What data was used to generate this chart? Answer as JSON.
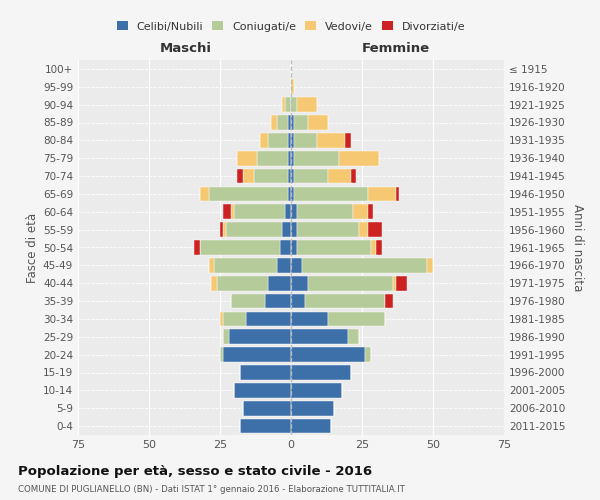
{
  "age_groups": [
    "0-4",
    "5-9",
    "10-14",
    "15-19",
    "20-24",
    "25-29",
    "30-34",
    "35-39",
    "40-44",
    "45-49",
    "50-54",
    "55-59",
    "60-64",
    "65-69",
    "70-74",
    "75-79",
    "80-84",
    "85-89",
    "90-94",
    "95-99",
    "100+"
  ],
  "birth_years": [
    "2011-2015",
    "2006-2010",
    "2001-2005",
    "1996-2000",
    "1991-1995",
    "1986-1990",
    "1981-1985",
    "1976-1980",
    "1971-1975",
    "1966-1970",
    "1961-1965",
    "1956-1960",
    "1951-1955",
    "1946-1950",
    "1941-1945",
    "1936-1940",
    "1931-1935",
    "1926-1930",
    "1921-1925",
    "1916-1920",
    "≤ 1915"
  ],
  "male": {
    "celibi": [
      18,
      17,
      20,
      18,
      24,
      22,
      16,
      9,
      8,
      5,
      4,
      3,
      2,
      1,
      1,
      1,
      1,
      1,
      0,
      0,
      0
    ],
    "coniugati": [
      0,
      0,
      0,
      0,
      1,
      2,
      8,
      12,
      18,
      22,
      28,
      20,
      18,
      28,
      12,
      11,
      7,
      4,
      2,
      0,
      0
    ],
    "vedovi": [
      0,
      0,
      0,
      0,
      0,
      0,
      1,
      0,
      2,
      2,
      0,
      1,
      1,
      3,
      4,
      7,
      3,
      2,
      1,
      0,
      0
    ],
    "divorziati": [
      0,
      0,
      0,
      0,
      0,
      0,
      0,
      0,
      0,
      0,
      2,
      1,
      3,
      0,
      2,
      0,
      0,
      0,
      0,
      0,
      0
    ]
  },
  "female": {
    "nubili": [
      14,
      15,
      18,
      21,
      26,
      20,
      13,
      5,
      6,
      4,
      2,
      2,
      2,
      1,
      1,
      1,
      1,
      1,
      0,
      0,
      0
    ],
    "coniugate": [
      0,
      0,
      0,
      0,
      2,
      4,
      20,
      28,
      30,
      44,
      26,
      22,
      20,
      26,
      12,
      16,
      8,
      5,
      2,
      0,
      0
    ],
    "vedove": [
      0,
      0,
      0,
      0,
      0,
      0,
      0,
      0,
      1,
      2,
      2,
      3,
      5,
      10,
      8,
      14,
      10,
      7,
      7,
      1,
      0
    ],
    "divorziate": [
      0,
      0,
      0,
      0,
      0,
      0,
      0,
      3,
      4,
      0,
      2,
      5,
      2,
      1,
      2,
      0,
      2,
      0,
      0,
      0,
      0
    ]
  },
  "colors": {
    "celibi": "#3d6fa8",
    "coniugati": "#b5cb9a",
    "vedovi": "#f5c871",
    "divorziati": "#cc2222"
  },
  "xlim": 75,
  "title": "Popolazione per età, sesso e stato civile - 2016",
  "subtitle": "COMUNE DI PUGLIANELLO (BN) - Dati ISTAT 1° gennaio 2016 - Elaborazione TUTTITALIA.IT",
  "ylabel_left": "Fasce di età",
  "ylabel_right": "Anni di nascita",
  "xlabel_left": "Maschi",
  "xlabel_right": "Femmine",
  "legend_labels": [
    "Celibi/Nubili",
    "Coniugati/e",
    "Vedovi/e",
    "Divorziati/e"
  ],
  "bg_color": "#f5f5f5",
  "plot_bg": "#ebebeb"
}
